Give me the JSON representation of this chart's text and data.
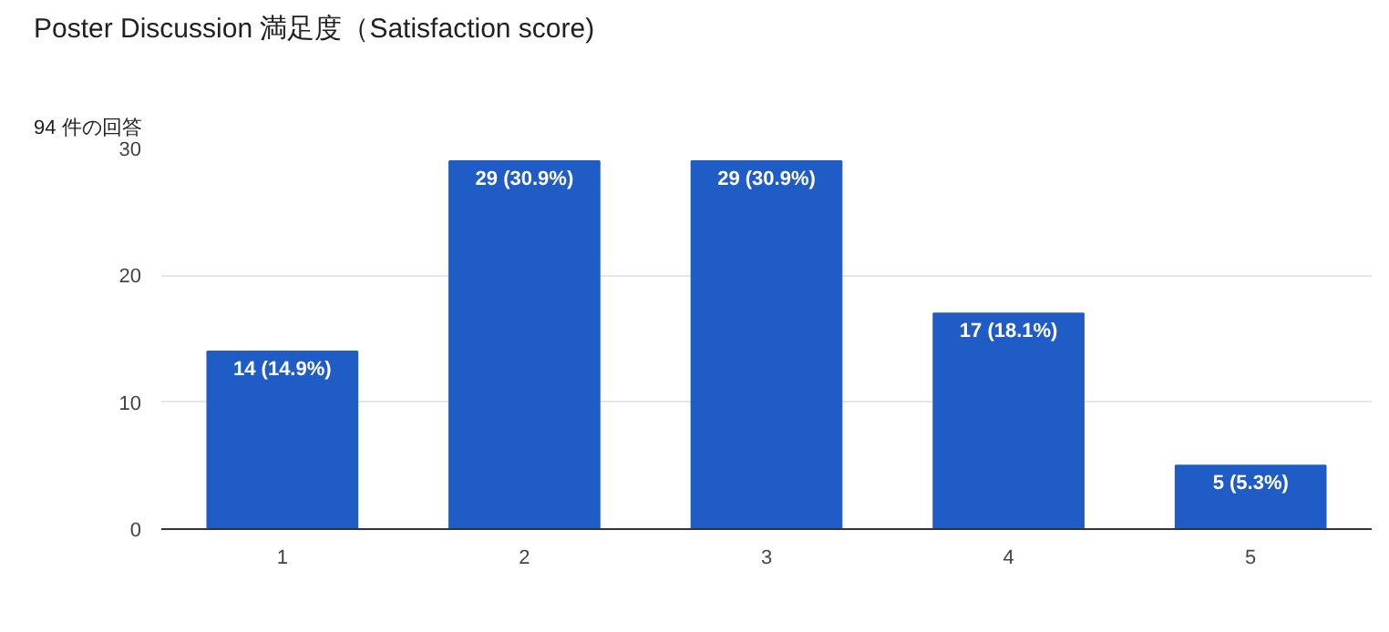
{
  "chart_data": {
    "type": "bar",
    "title": "Poster Discussion 満足度（Satisfaction score)",
    "subtitle": "94 件の回答",
    "categories": [
      "1",
      "2",
      "3",
      "4",
      "5"
    ],
    "values": [
      14,
      29,
      29,
      17,
      5
    ],
    "value_labels": [
      "14 (14.9%)",
      "29 (30.9%)",
      "29 (30.9%)",
      "17 (18.1%)",
      "5 (5.3%)"
    ],
    "color": "#1f5cc5",
    "ylim": [
      0,
      30
    ],
    "yticks": [
      0,
      10,
      20,
      30
    ],
    "grid": "y"
  }
}
